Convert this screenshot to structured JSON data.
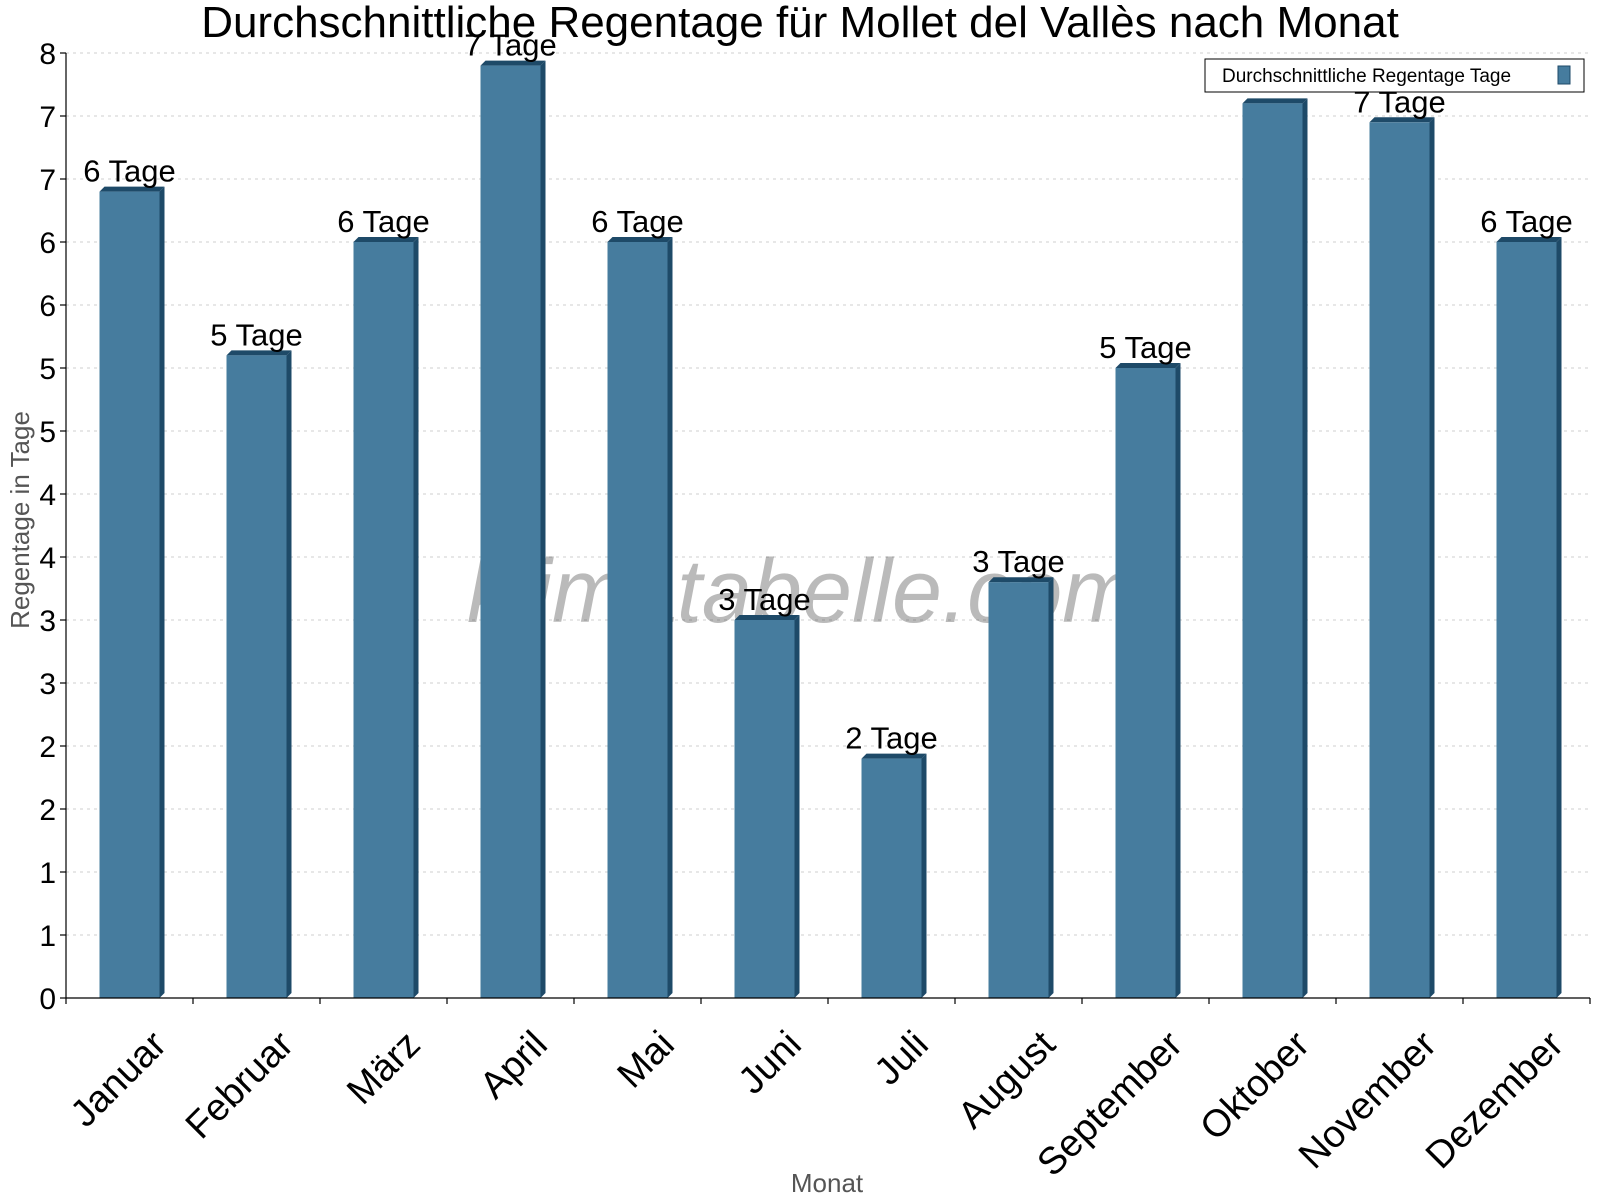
{
  "chart_data": {
    "type": "bar",
    "title": "Durchschnittliche Regentage für Mollet del Vallès nach Monat",
    "xlabel": "Monat",
    "ylabel": "Regentage in Tage",
    "ylim": [
      0,
      7.5
    ],
    "y_tick_labels": [
      "0",
      "1",
      "1",
      "2",
      "2",
      "3",
      "3",
      "4",
      "4",
      "5",
      "5",
      "6",
      "6",
      "7",
      "7",
      "8"
    ],
    "grid": true,
    "legend_position": "top-right",
    "categories": [
      "Januar",
      "Februar",
      "März",
      "April",
      "Mai",
      "Juni",
      "Juli",
      "August",
      "September",
      "Oktober",
      "November",
      "Dezember"
    ],
    "series": [
      {
        "name": "Durchschnittliche Regentage Tage",
        "color": "#467c9e",
        "values": [
          6.4,
          5.1,
          6.0,
          7.4,
          6.0,
          3.0,
          1.9,
          3.3,
          5.0,
          7.1,
          6.95,
          6.0
        ],
        "data_labels": [
          "6 Tage",
          "5 Tage",
          "6 Tage",
          "7 Tage",
          "6 Tage",
          "3 Tage",
          "2 Tage",
          "3 Tage",
          "5 Tage",
          "",
          "7 Tage",
          "6 Tage"
        ]
      }
    ],
    "watermark": "klimatabelle.com"
  }
}
